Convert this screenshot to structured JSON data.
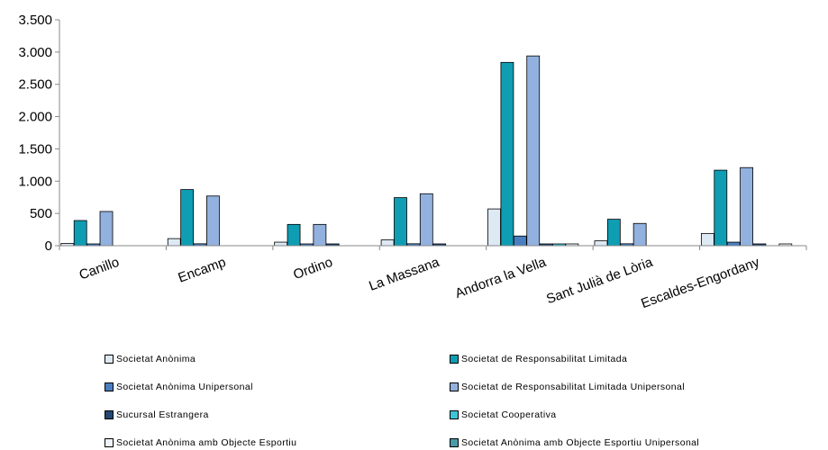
{
  "chart_data": {
    "type": "bar",
    "categories": [
      "Canillo",
      "Encamp",
      "Ordino",
      "La Massana",
      "Andorra la Vella",
      "Sant Julià de Lòria",
      "Escaldes-Engordany"
    ],
    "ylim": [
      0,
      3500
    ],
    "yticks": [
      0,
      500,
      1000,
      1500,
      2000,
      2500,
      3000,
      3500
    ],
    "ytick_labels": [
      "0",
      "500",
      "1.000",
      "1.500",
      "2.000",
      "2.500",
      "3.000",
      "3.500"
    ],
    "grid": false,
    "legend_position": "bottom",
    "series": [
      {
        "name": "Societat Anònima",
        "color": "#dde9f3",
        "values": [
          35,
          110,
          55,
          90,
          570,
          75,
          190
        ]
      },
      {
        "name": "Societat de Responsabilitat Limitada",
        "color": "#0f9db3",
        "values": [
          390,
          870,
          330,
          745,
          2840,
          410,
          1170
        ]
      },
      {
        "name": "Societat Anònima Unipersonal",
        "color": "#4a7ec0",
        "values": [
          10,
          30,
          5,
          30,
          150,
          30,
          55
        ]
      },
      {
        "name": "Societat de Responsabilitat Limitada Unipersonal",
        "color": "#92b1de",
        "values": [
          530,
          770,
          330,
          805,
          2940,
          345,
          1210
        ]
      },
      {
        "name": "Sucursal Estrangera",
        "color": "#244773",
        "values": [
          0,
          0,
          5,
          5,
          10,
          0,
          5
        ]
      },
      {
        "name": "Societat Cooperativa",
        "color": "#3ec4d6",
        "values": [
          0,
          0,
          0,
          0,
          5,
          0,
          0
        ]
      },
      {
        "name": "Societat Anònima amb Objecte Esportiu",
        "color": "#eef5fa",
        "values": [
          0,
          0,
          0,
          0,
          5,
          0,
          5
        ]
      },
      {
        "name": "Societat Anònima amb Objecte Esportiu Unipersonal",
        "color": "#4a9aa8",
        "values": [
          0,
          0,
          0,
          0,
          0,
          0,
          0
        ]
      }
    ]
  }
}
